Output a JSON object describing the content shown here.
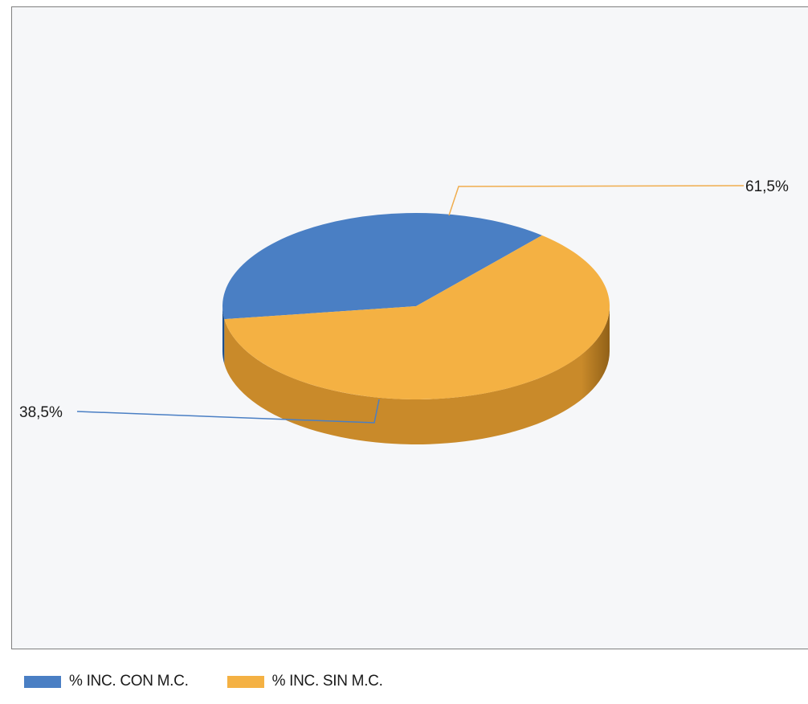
{
  "chart_data": {
    "type": "pie",
    "style": "3d",
    "categories": [
      "% INC. CON M.C.",
      "% INC. SIN M.C."
    ],
    "values": [
      38.5,
      61.5
    ],
    "data_labels": [
      "38,5%",
      "61,5%"
    ],
    "colors": [
      "#4a7fc4",
      "#f4b143"
    ],
    "legend_position": "bottom-left",
    "title": ""
  }
}
